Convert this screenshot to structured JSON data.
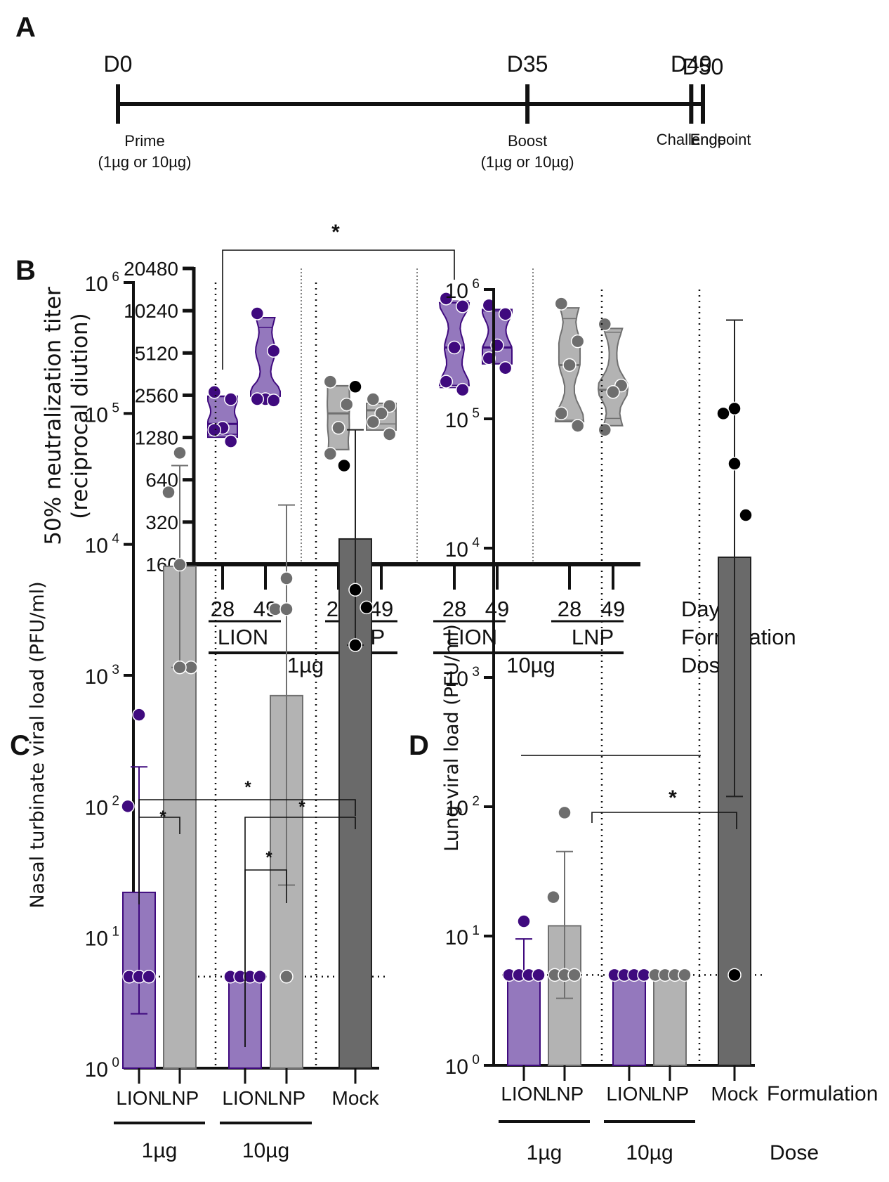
{
  "panels": {
    "A": {
      "letter": "A",
      "timeline": [
        {
          "day": 0,
          "label": "D0",
          "event": "Prime",
          "detail": "(1µg or 10µg)"
        },
        {
          "day": 35,
          "label": "D35",
          "event": "Boost",
          "detail": "(1µg or 10µg)"
        },
        {
          "day": 49,
          "label": "D49",
          "event": "Challenge",
          "detail": ""
        },
        {
          "day": 50,
          "label": "D50",
          "event": "Endpoint",
          "detail": ""
        }
      ]
    },
    "B": {
      "letter": "B"
    },
    "C": {
      "letter": "C"
    },
    "D": {
      "letter": "D"
    }
  },
  "colors": {
    "lion_fill": "#9478bd",
    "lion_dot": "#3f0a7e",
    "lnp_fill": "#b3b3b3",
    "lnp_dot": "#6e6e6e",
    "mock_fill": "#6a6a6a",
    "mock_dot": "#000000",
    "axis": "#111111"
  },
  "chart_data": [
    {
      "id": "B",
      "type": "violin",
      "title": "",
      "ylabel": "50% neutralization titer",
      "ylabel2": "(reciprocal diution)",
      "yscale": "log2",
      "ylim": [
        160,
        20480
      ],
      "yticks": [
        160,
        320,
        640,
        1280,
        2560,
        5120,
        10240,
        20480
      ],
      "row_labels": [
        "Day",
        "Formulation",
        "Dose"
      ],
      "groups": [
        {
          "day": "28",
          "formulation": "LION",
          "dose": "1µg",
          "color": "lion",
          "points": [
            2700,
            2400,
            1500,
            1450,
            1200
          ],
          "median": 1600,
          "q1": 1350,
          "q3": 2500
        },
        {
          "day": "49",
          "formulation": "LION",
          "dose": "1µg",
          "color": "lion",
          "points": [
            9800,
            5300,
            2400,
            2400,
            2350
          ],
          "median": 2450,
          "q1": 2400,
          "q3": 7800
        },
        {
          "day": "28",
          "formulation": "LNP",
          "dose": "1µg",
          "color": "lnp",
          "points": [
            3200,
            2200,
            1500,
            980
          ],
          "median": 1900,
          "q1": 1050,
          "q3": 3000
        },
        {
          "day": "49",
          "formulation": "LNP",
          "dose": "1µg",
          "color": "lnp",
          "points": [
            2400,
            2150,
            1900,
            1650,
            1350
          ],
          "median": 2000,
          "q1": 1600,
          "q3": 2250
        },
        {
          "day": "28",
          "formulation": "LION",
          "dose": "10µg",
          "color": "lion",
          "points": [
            12500,
            11000,
            5600,
            3200,
            2800
          ],
          "median": 5600,
          "q1": 2900,
          "q3": 12000
        },
        {
          "day": "49",
          "formulation": "LION",
          "dose": "10µg",
          "color": "lion",
          "points": [
            11200,
            9700,
            5800,
            4700,
            4000
          ],
          "median": 5600,
          "q1": 4300,
          "q3": 10200
        },
        {
          "day": "28",
          "formulation": "LNP",
          "dose": "10µg",
          "color": "lnp",
          "points": [
            11500,
            6200,
            4200,
            1900,
            1550
          ],
          "median": 4200,
          "q1": 1700,
          "q3": 9000
        },
        {
          "day": "49",
          "formulation": "LNP",
          "dose": "10µg",
          "color": "lnp",
          "points": [
            8200,
            3000,
            2700,
            1450
          ],
          "median": 2800,
          "q1": 1750,
          "q3": 7200
        }
      ],
      "dose_groups": [
        {
          "label": "1µg",
          "from": 0,
          "to": 3
        },
        {
          "label": "10µg",
          "from": 4,
          "to": 7
        }
      ],
      "formulation_groups": [
        {
          "label": "LION",
          "from": 0,
          "to": 1
        },
        {
          "label": "LNP",
          "from": 2,
          "to": 3
        },
        {
          "label": "LION",
          "from": 4,
          "to": 5
        },
        {
          "label": "LNP",
          "from": 6,
          "to": 7
        }
      ],
      "annotations": [
        {
          "type": "significance",
          "from": 0,
          "to": 4,
          "label": "*"
        }
      ]
    },
    {
      "id": "C",
      "type": "bar",
      "ylabel": "Nasal turbinate viral load (PFU/ml)",
      "yscale": "log10",
      "ylim": [
        1,
        1000000
      ],
      "yticks": [
        0,
        1,
        2,
        3,
        4,
        5,
        6
      ],
      "ytick_base": "10",
      "limit_of_detection": 5,
      "categories": [
        "LION",
        "LNP",
        "LION",
        "LNP",
        "Mock"
      ],
      "doses": [
        {
          "label": "1µg",
          "from": 0,
          "to": 1
        },
        {
          "label": "10µg",
          "from": 2,
          "to": 3
        }
      ],
      "bars": [
        {
          "formulation": "LION",
          "dose": "1µg",
          "color": "lion",
          "mean": 22,
          "err_low": 2.6,
          "err_high": 200,
          "points": [
            500,
            100,
            5,
            5,
            5
          ]
        },
        {
          "formulation": "LNP",
          "dose": "1µg",
          "color": "lnp",
          "mean": 6800,
          "err_low": 1150,
          "err_high": 40000,
          "points": [
            50000,
            25000,
            7000,
            1150,
            1150
          ]
        },
        {
          "formulation": "LION",
          "dose": "10µg",
          "color": "lion",
          "mean": 5,
          "err_low": null,
          "err_high": null,
          "points": [
            5,
            5,
            5,
            5
          ]
        },
        {
          "formulation": "LNP",
          "dose": "10µg",
          "color": "lnp",
          "mean": 700,
          "err_low": 25,
          "err_high": 20000,
          "points": [
            5500,
            3200,
            3200,
            5
          ]
        },
        {
          "formulation": "Mock",
          "dose": "",
          "color": "mock",
          "mean": 11000,
          "err_low": 1700,
          "err_high": 75000,
          "points": [
            160000,
            40000,
            4500,
            3300,
            1700
          ]
        }
      ],
      "annotations": [
        {
          "type": "significance",
          "from": 0,
          "to": 1,
          "label": "*"
        },
        {
          "type": "significance",
          "from": 0,
          "to": 4,
          "label": "*"
        },
        {
          "type": "significance",
          "from": 2,
          "to": 4,
          "label": "*"
        },
        {
          "type": "significance",
          "from": 2,
          "to": 3,
          "label": "*"
        }
      ]
    },
    {
      "id": "D",
      "type": "bar",
      "ylabel": "Lung viral load (PFU/ml)",
      "yscale": "log10",
      "ylim": [
        1,
        1000000
      ],
      "yticks": [
        0,
        1,
        2,
        3,
        4,
        5,
        6
      ],
      "ytick_base": "10",
      "limit_of_detection": 5,
      "categories": [
        "LION",
        "LNP",
        "LION",
        "LNP",
        "Mock"
      ],
      "row_labels": [
        "Formulation",
        "Dose"
      ],
      "doses": [
        {
          "label": "1µg",
          "from": 0,
          "to": 1
        },
        {
          "label": "10µg",
          "from": 2,
          "to": 3
        }
      ],
      "bars": [
        {
          "formulation": "LION",
          "dose": "1µg",
          "color": "lion",
          "mean": 5,
          "err_low": null,
          "err_high": 9.5,
          "points": [
            13,
            5,
            5,
            5,
            5
          ]
        },
        {
          "formulation": "LNP",
          "dose": "1µg",
          "color": "lnp",
          "mean": 12,
          "err_low": 3.3,
          "err_high": 45,
          "points": [
            90,
            20,
            5,
            5,
            5
          ]
        },
        {
          "formulation": "LION",
          "dose": "10µg",
          "color": "lion",
          "mean": 5,
          "err_low": null,
          "err_high": null,
          "points": [
            5,
            5,
            5,
            5
          ]
        },
        {
          "formulation": "LNP",
          "dose": "10µg",
          "color": "lnp",
          "mean": 5,
          "err_low": null,
          "err_high": null,
          "points": [
            5,
            5,
            5,
            5
          ]
        },
        {
          "formulation": "Mock",
          "dose": "",
          "color": "mock",
          "mean": 8500,
          "err_low": 120,
          "err_high": 580000,
          "points": [
            120000,
            110000,
            45000,
            18000,
            5
          ]
        }
      ],
      "annotations": [
        {
          "type": "significance",
          "from": 2,
          "to": 4,
          "label": "*"
        },
        {
          "type": "reference_line",
          "from": 0,
          "to": 3,
          "value": 250
        }
      ]
    }
  ]
}
